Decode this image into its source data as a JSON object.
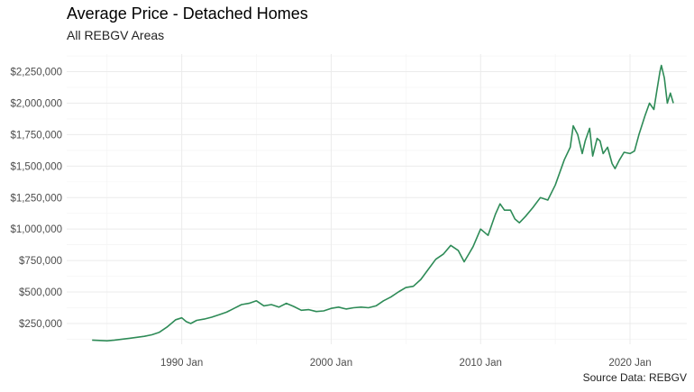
{
  "chart_data": {
    "type": "line",
    "title": "Average Price - Detached Homes",
    "subtitle": "All REBGV Areas",
    "caption": "Source Data: REBGV",
    "xlabel": "",
    "ylabel": "",
    "grid": true,
    "line_color": "#2e8b57",
    "y_ticks": [
      {
        "value": 250000,
        "label": "$250,000"
      },
      {
        "value": 500000,
        "label": "$500,000"
      },
      {
        "value": 750000,
        "label": "$750,000"
      },
      {
        "value": 1000000,
        "label": "$1,000,000"
      },
      {
        "value": 1250000,
        "label": "$1,250,000"
      },
      {
        "value": 1500000,
        "label": "$1,500,000"
      },
      {
        "value": 1750000,
        "label": "$1,750,000"
      },
      {
        "value": 2000000,
        "label": "$2,000,000"
      },
      {
        "value": 2250000,
        "label": "$2,250,000"
      }
    ],
    "x_ticks": [
      {
        "value": 1990,
        "label": "1990 Jan"
      },
      {
        "value": 2000,
        "label": "2000 Jan"
      },
      {
        "value": 2010,
        "label": "2010 Jan"
      },
      {
        "value": 2020,
        "label": "2020 Jan"
      }
    ],
    "xlim": [
      1982.3,
      2023.8
    ],
    "ylim": [
      85000,
      2390000
    ],
    "series": [
      {
        "x": [
          1984.0,
          1984.5,
          1985.0,
          1985.5,
          1986.0,
          1986.5,
          1987.0,
          1987.5,
          1988.0,
          1988.5,
          1989.0,
          1989.3,
          1989.6,
          1990.0,
          1990.3,
          1990.6,
          1991.0,
          1991.5,
          1992.0,
          1992.5,
          1993.0,
          1993.5,
          1994.0,
          1994.5,
          1995.0,
          1995.5,
          1996.0,
          1996.5,
          1997.0,
          1997.5,
          1998.0,
          1998.5,
          1999.0,
          1999.5,
          2000.0,
          2000.5,
          2001.0,
          2001.5,
          2002.0,
          2002.5,
          2003.0,
          2003.5,
          2004.0,
          2004.5,
          2005.0,
          2005.5,
          2006.0,
          2006.5,
          2007.0,
          2007.5,
          2008.0,
          2008.5,
          2008.9,
          2009.2,
          2009.5,
          2010.0,
          2010.5,
          2011.0,
          2011.3,
          2011.6,
          2012.0,
          2012.3,
          2012.6,
          2013.0,
          2013.5,
          2014.0,
          2014.5,
          2015.0,
          2015.3,
          2015.6,
          2016.0,
          2016.2,
          2016.5,
          2016.8,
          2017.0,
          2017.3,
          2017.5,
          2017.8,
          2018.0,
          2018.2,
          2018.5,
          2018.8,
          2019.0,
          2019.3,
          2019.6,
          2020.0,
          2020.3,
          2020.6,
          2021.0,
          2021.3,
          2021.6,
          2021.8,
          2022.0,
          2022.1,
          2022.3,
          2022.5,
          2022.7,
          2022.9
        ],
        "y": [
          118000,
          115000,
          112000,
          118000,
          125000,
          132000,
          140000,
          148000,
          160000,
          180000,
          220000,
          250000,
          280000,
          295000,
          265000,
          250000,
          275000,
          285000,
          300000,
          320000,
          340000,
          370000,
          400000,
          410000,
          430000,
          390000,
          400000,
          380000,
          410000,
          385000,
          355000,
          360000,
          345000,
          350000,
          370000,
          380000,
          365000,
          375000,
          380000,
          375000,
          390000,
          430000,
          460000,
          500000,
          535000,
          545000,
          600000,
          680000,
          760000,
          800000,
          870000,
          830000,
          740000,
          800000,
          860000,
          1000000,
          950000,
          1120000,
          1200000,
          1150000,
          1150000,
          1080000,
          1050000,
          1100000,
          1170000,
          1250000,
          1230000,
          1350000,
          1450000,
          1550000,
          1650000,
          1820000,
          1750000,
          1600000,
          1700000,
          1800000,
          1580000,
          1720000,
          1700000,
          1600000,
          1650000,
          1520000,
          1480000,
          1550000,
          1610000,
          1600000,
          1620000,
          1750000,
          1900000,
          2000000,
          1950000,
          2100000,
          2250000,
          2300000,
          2200000,
          2000000,
          2080000,
          2000000
        ]
      }
    ]
  }
}
